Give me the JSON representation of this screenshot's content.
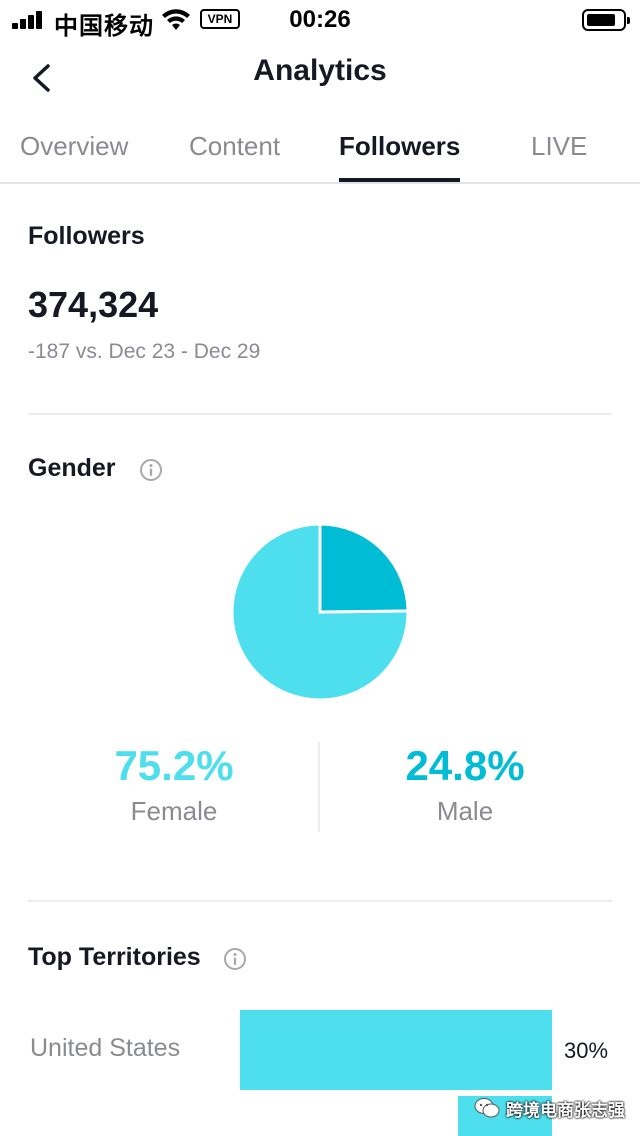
{
  "status_bar": {
    "carrier": "中国移动",
    "vpn": "VPN",
    "time": "00:26"
  },
  "nav": {
    "title": "Analytics",
    "back_icon": "chevron-left-icon"
  },
  "tabs": [
    {
      "label": "Overview",
      "active": false
    },
    {
      "label": "Content",
      "active": false
    },
    {
      "label": "Followers",
      "active": true
    },
    {
      "label": "LIVE",
      "active": false
    }
  ],
  "followers": {
    "label": "Followers",
    "count": "374,324",
    "change": "-187 vs. Dec 23 - Dec 29"
  },
  "gender": {
    "label": "Gender",
    "info_icon": "info-circle-icon",
    "female": {
      "value": "75.2%",
      "label": "Female",
      "percent": 75.2,
      "color": "#4ddfed"
    },
    "male": {
      "value": "24.8%",
      "label": "Male",
      "percent": 24.8,
      "color": "#00bcd4"
    }
  },
  "territories": {
    "label": "Top Territories",
    "info_icon": "info-circle-icon",
    "items": [
      {
        "name": "United States",
        "percent_label": "30%",
        "percent": 30
      }
    ]
  },
  "watermark": {
    "text": "跨境电商张志强",
    "icon": "wechat-icon"
  },
  "colors": {
    "accent_light": "#4ddfed",
    "accent_dark": "#00bcd4",
    "text_primary": "#161823",
    "text_secondary": "#8a8b91"
  }
}
